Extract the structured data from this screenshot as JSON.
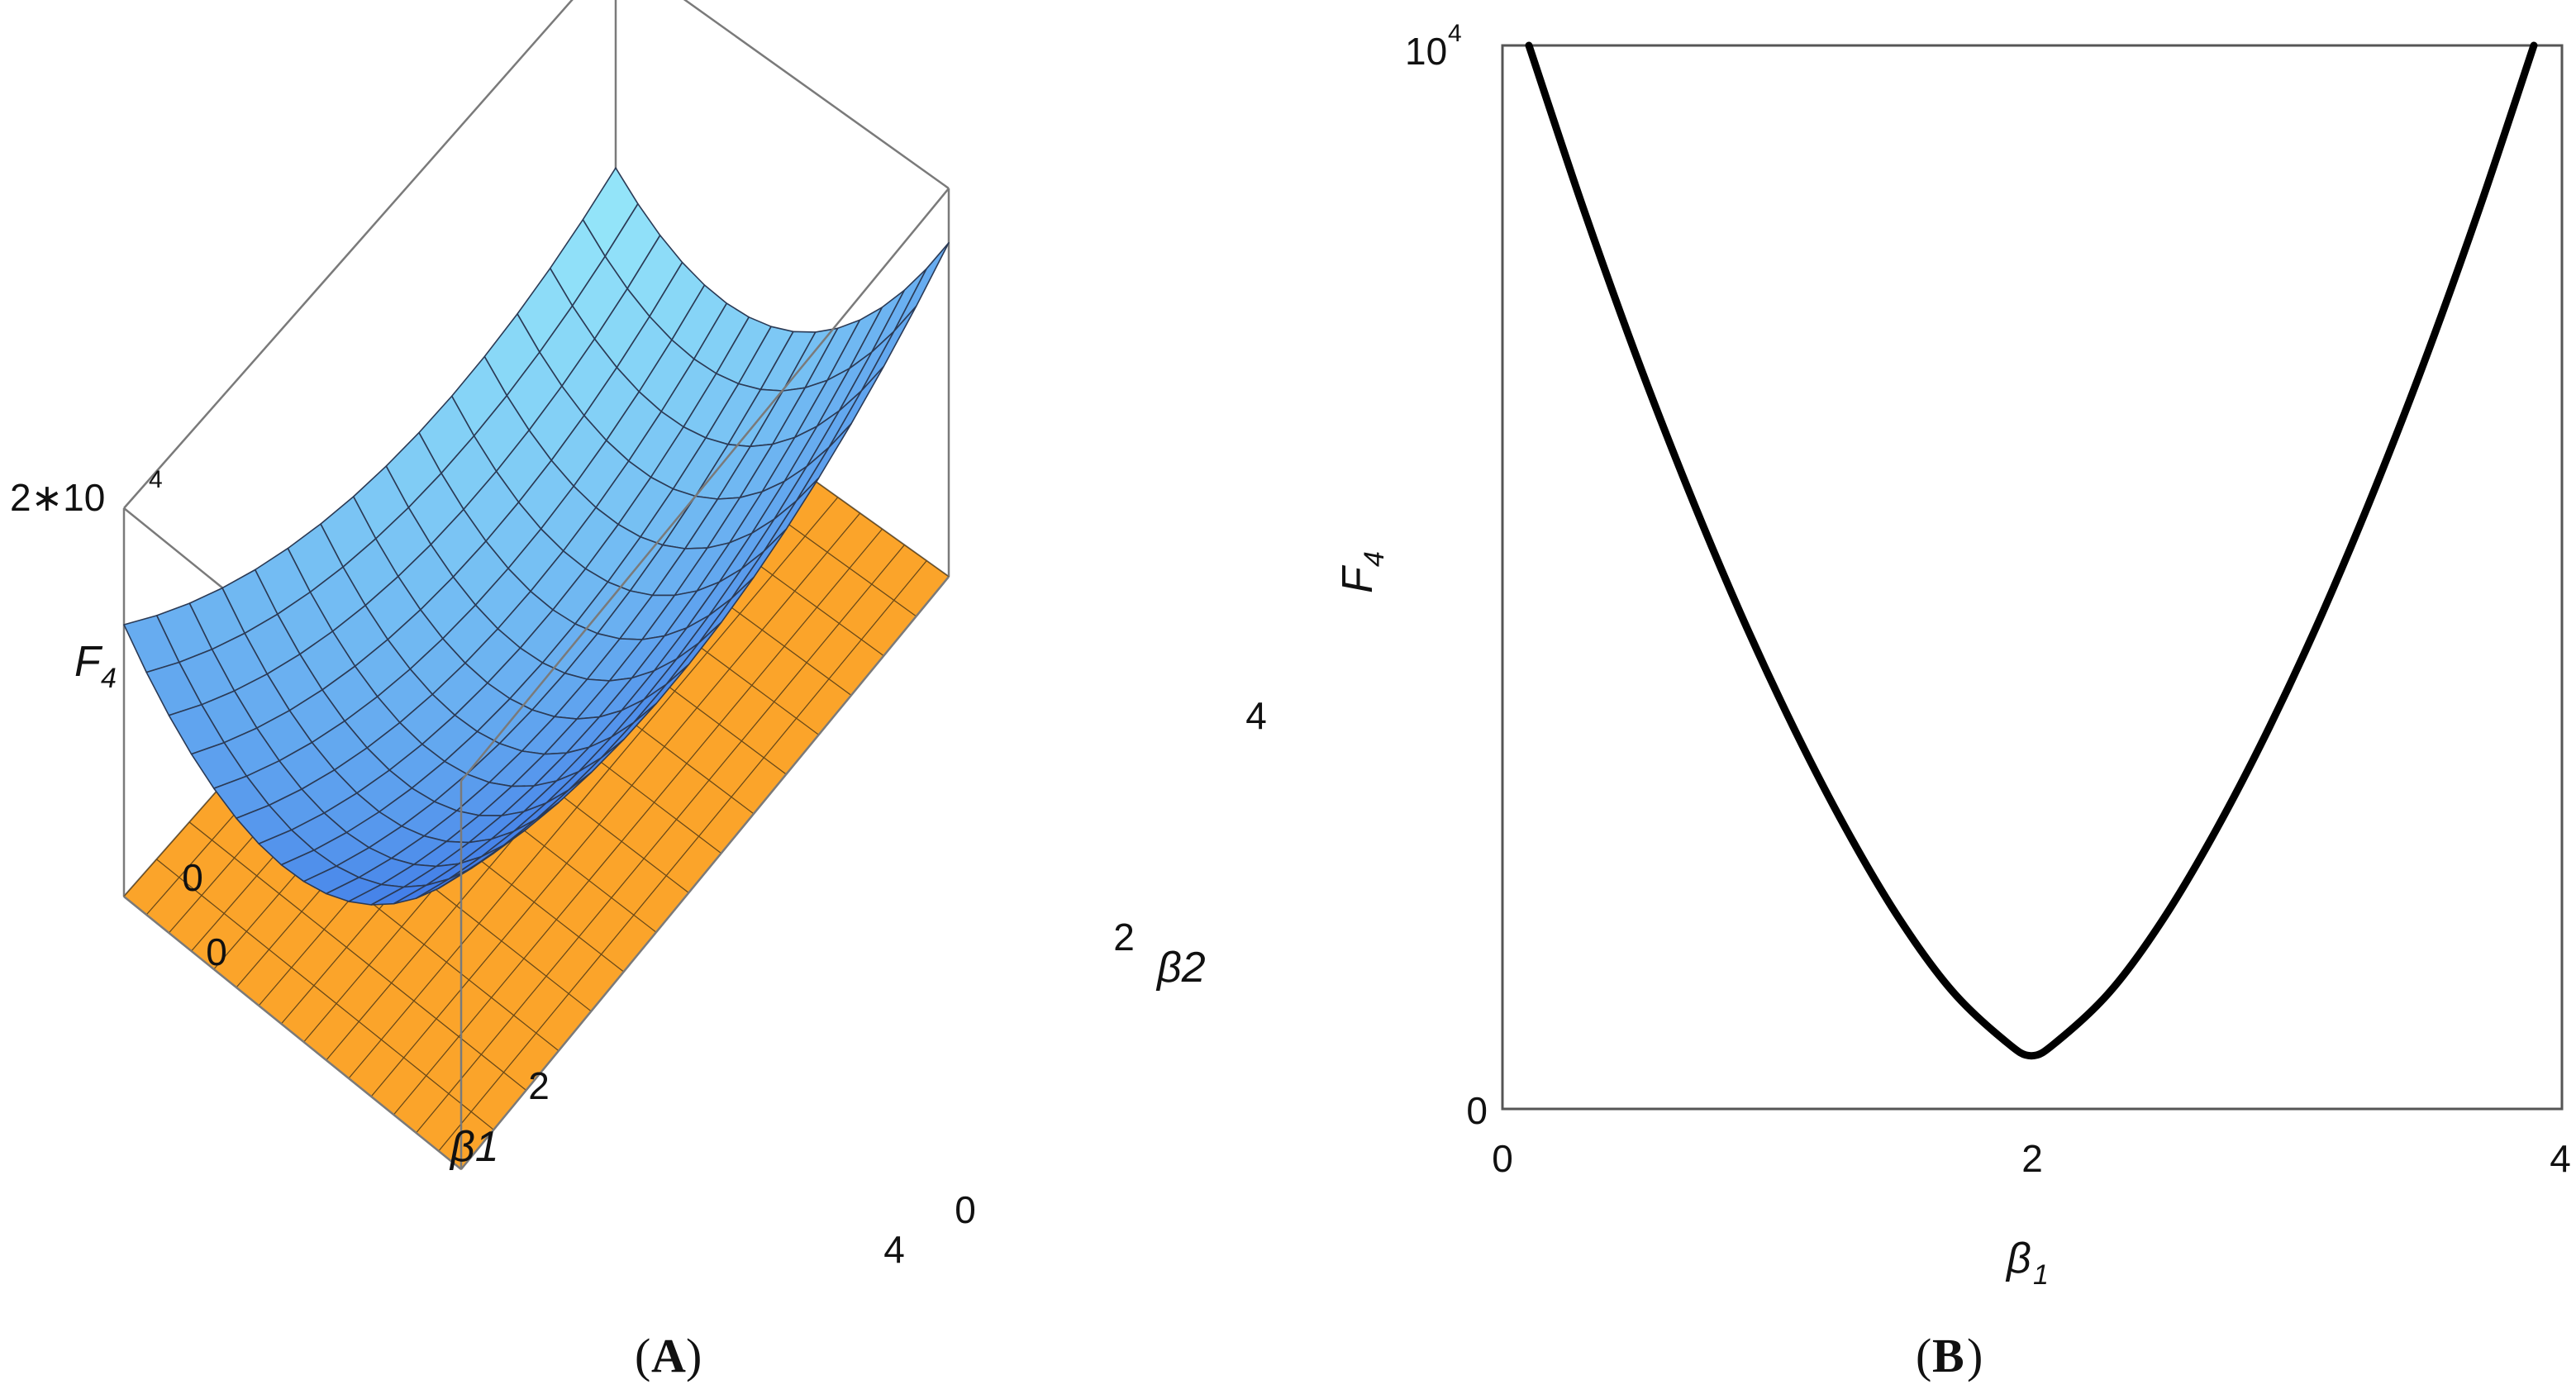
{
  "chart_data": [
    {
      "type": "surface",
      "panel_label": "A",
      "zlabel": "F",
      "zlabel_sub": "4",
      "xlabel": "β1",
      "ylabel": "β2",
      "x_ticks": [
        "0",
        "2",
        "4"
      ],
      "y_ticks": [
        "0",
        "2",
        "4"
      ],
      "z_ticks": [
        {
          "text": "0",
          "base": "0",
          "exp": ""
        },
        {
          "text": "2*10^4",
          "base": "2∗10",
          "exp": "4"
        }
      ],
      "xlim": [
        0,
        4
      ],
      "ylim": [
        0,
        4
      ],
      "zlim": [
        0,
        20000
      ],
      "grid_divisions": 15,
      "series": [
        {
          "surface": "F4(β1, β2)",
          "color": "#74c6f2",
          "min_at": [
            2,
            2
          ]
        },
        {
          "surface": "plane z = 0",
          "color": "#fba42a"
        }
      ]
    },
    {
      "type": "line",
      "panel_label": "B",
      "xlabel": "β",
      "xlabel_sub": "1",
      "ylabel": "F",
      "ylabel_sub": "4",
      "xlim": [
        0,
        4
      ],
      "ylim": [
        0,
        10000
      ],
      "x_ticks": [
        "0",
        "2",
        "4"
      ],
      "y_ticks": [
        {
          "text": "0",
          "base": "0",
          "exp": ""
        },
        {
          "text": "10^4",
          "base": "10",
          "exp": "4"
        }
      ],
      "x": [
        0.1,
        0.3,
        0.5,
        0.7,
        0.9,
        1.1,
        1.3,
        1.5,
        1.7,
        1.9,
        2.0,
        2.1,
        2.3,
        2.5,
        2.7,
        2.9,
        3.1,
        3.3,
        3.5,
        3.7,
        3.9
      ],
      "y": [
        10000,
        8510,
        7120,
        5840,
        4660,
        3590,
        2630,
        1790,
        1110,
        640,
        500,
        640,
        1110,
        1790,
        2630,
        3590,
        4660,
        5840,
        7120,
        8510,
        10000
      ],
      "line_color": "#000000"
    }
  ],
  "captions": {
    "a": {
      "open": "(",
      "letter": "A",
      "close": ")"
    },
    "b": {
      "open": "(",
      "letter": "B",
      "close": ")"
    }
  }
}
